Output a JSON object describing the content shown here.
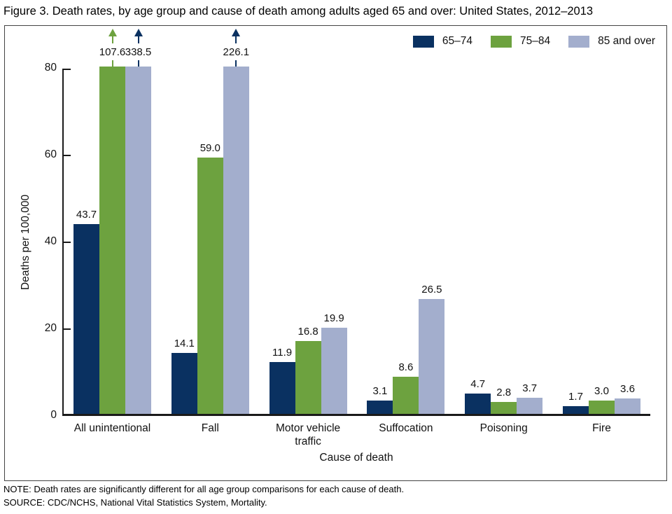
{
  "title": "Figure 3. Death rates, by age group and cause of death among adults aged 65 and over: United States, 2012–2013",
  "chart_data": {
    "type": "bar",
    "title": "Figure 3. Death rates, by age group and cause of death among adults aged 65 and over: United States, 2012–2013",
    "categories": [
      "All unintentional",
      "Fall",
      "Motor vehicle traffic",
      "Suffocation",
      "Poisoning",
      "Fire"
    ],
    "series": [
      {
        "name": "65–74",
        "color": "#0a3161",
        "arrow_color": "#0a3161",
        "values": [
          43.7,
          14.1,
          11.9,
          3.1,
          4.7,
          1.7
        ]
      },
      {
        "name": "75–84",
        "color": "#6da23f",
        "arrow_color": "#6da23f",
        "values": [
          107.6,
          59.0,
          16.8,
          8.6,
          2.8,
          3.0
        ]
      },
      {
        "name": "85 and over",
        "color": "#a3aecd",
        "arrow_color": "#0a3161",
        "values": [
          338.5,
          226.1,
          19.9,
          26.5,
          3.7,
          3.6
        ]
      }
    ],
    "xlabel": "Cause of death",
    "ylabel": "Deaths per 100,000",
    "ylim": [
      0,
      80
    ],
    "yticks": [
      0,
      20,
      40,
      60,
      80
    ],
    "clipped_note": "values above 80 drawn capped with arrow",
    "grid": false,
    "legend_position": "top-right"
  },
  "notes": {
    "note": "NOTE: Death rates are significantly different for all age group comparisons for each cause of death.",
    "source": "SOURCE: CDC/NCHS, National Vital Statistics System, Mortality."
  }
}
